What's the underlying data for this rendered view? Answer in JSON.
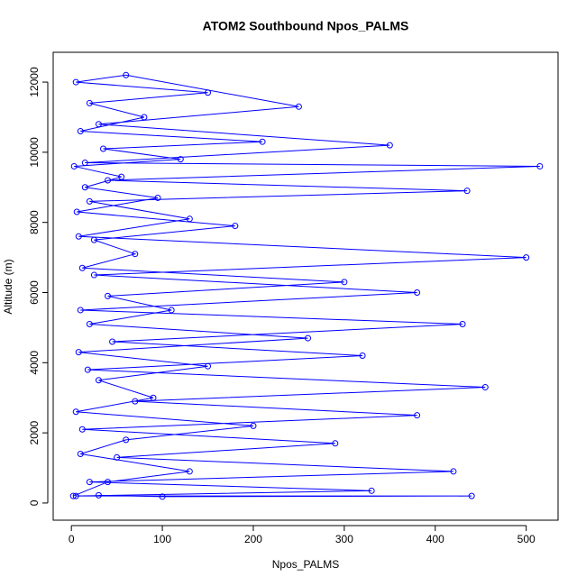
{
  "chart_data": {
    "type": "line",
    "markers": "circle",
    "color": "#0000ff",
    "title": "ATOM2 Southbound Npos_PALMS",
    "x_label": "Npos_PALMS",
    "y_label": "Altitude (m)",
    "xlim": [
      -20,
      535
    ],
    "ylim": [
      -490,
      12850
    ],
    "xticks": [
      0,
      100,
      200,
      300,
      400,
      500
    ],
    "yticks": [
      0,
      2000,
      4000,
      6000,
      8000,
      10000,
      12000
    ],
    "grid": false,
    "x": [
      2,
      40,
      130,
      10,
      60,
      200,
      5,
      90,
      30,
      150,
      8,
      260,
      20,
      110,
      40,
      300,
      12,
      70,
      25,
      180,
      6,
      95,
      15,
      55,
      3,
      120,
      35,
      210,
      10,
      80,
      20,
      150,
      5,
      60,
      250,
      30,
      350,
      15,
      515,
      40,
      435,
      20,
      130,
      8,
      500,
      25,
      380,
      10,
      430,
      45,
      320,
      18,
      455,
      70,
      380,
      12,
      290,
      50,
      420,
      20,
      330,
      5,
      440,
      100,
      30
    ],
    "y": [
      200,
      600,
      900,
      1400,
      1800,
      2200,
      2600,
      3000,
      3500,
      3900,
      4300,
      4700,
      5100,
      5500,
      5900,
      6300,
      6700,
      7100,
      7500,
      7900,
      8300,
      8700,
      9000,
      9300,
      9600,
      9800,
      10100,
      10300,
      10600,
      11000,
      11400,
      11700,
      12000,
      12200,
      11300,
      10800,
      10200,
      9700,
      9600,
      9200,
      8900,
      8600,
      8100,
      7600,
      7000,
      6500,
      6000,
      5500,
      5100,
      4600,
      4200,
      3800,
      3300,
      2900,
      2500,
      2100,
      1700,
      1300,
      900,
      600,
      350,
      200,
      200,
      180,
      220
    ]
  }
}
